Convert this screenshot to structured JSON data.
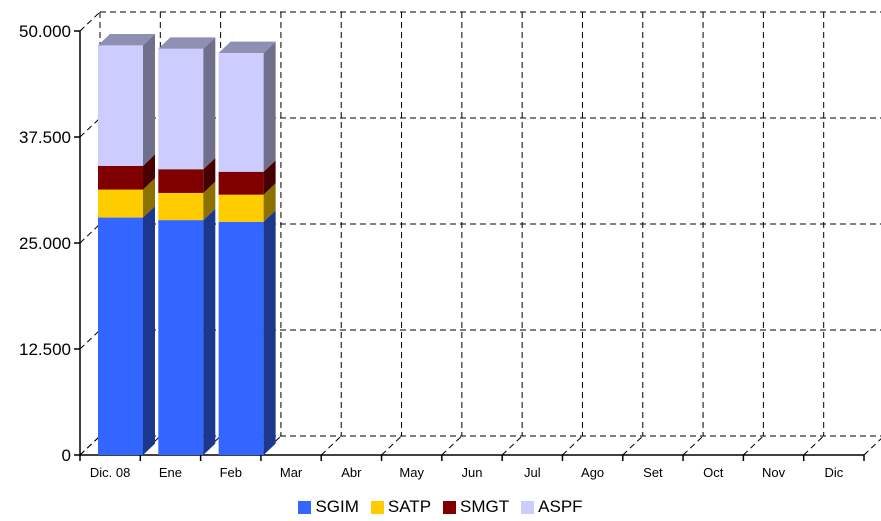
{
  "chart_data": {
    "type": "bar",
    "stacked": true,
    "three_d": true,
    "categories": [
      "Dic. 08",
      "Ene",
      "Feb",
      "Mar",
      "Abr",
      "May",
      "Jun",
      "Jul",
      "Ago",
      "Set",
      "Oct",
      "Nov",
      "Dic"
    ],
    "series": [
      {
        "name": "SGIM",
        "color": "#3366ff",
        "values": [
          28000,
          27700,
          27500,
          null,
          null,
          null,
          null,
          null,
          null,
          null,
          null,
          null,
          null
        ]
      },
      {
        "name": "SATP",
        "color": "#ffcc00",
        "values": [
          3300,
          3200,
          3200,
          null,
          null,
          null,
          null,
          null,
          null,
          null,
          null,
          null,
          null
        ]
      },
      {
        "name": "SMGT",
        "color": "#800000",
        "values": [
          2800,
          2800,
          2700,
          null,
          null,
          null,
          null,
          null,
          null,
          null,
          null,
          null,
          null
        ]
      },
      {
        "name": "ASPF",
        "color": "#ccccff",
        "values": [
          14200,
          14200,
          14000,
          null,
          null,
          null,
          null,
          null,
          null,
          null,
          null,
          null,
          null
        ]
      }
    ],
    "y_ticks": [
      "0",
      "12.500",
      "25.000",
      "37.500",
      "50.000"
    ],
    "ylim": [
      0,
      50000
    ],
    "grid": true,
    "legend_position": "bottom"
  }
}
